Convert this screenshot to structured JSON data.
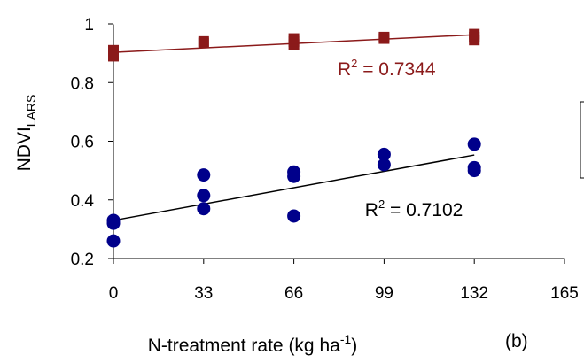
{
  "chart_data": {
    "type": "scatter",
    "panel_label": "(b)",
    "xlabel": {
      "main": "N-treatment rate (kg ha",
      "sup": "-1",
      "end": ")"
    },
    "ylabel": {
      "main": "NDVI",
      "sub": "LARS"
    },
    "xlim": [
      0,
      165
    ],
    "ylim": [
      0.2,
      1.0
    ],
    "xticks": [
      0,
      33,
      66,
      99,
      132,
      165
    ],
    "xtick_labels": [
      "0",
      "33",
      "66",
      "99",
      "132",
      "165"
    ],
    "yticks": [
      0.2,
      0.4,
      0.6,
      0.8,
      1.0
    ],
    "ytick_labels": [
      "0.2",
      "0.4",
      "0.6",
      "0.8",
      "1"
    ],
    "grid": false,
    "legend": "right (clipped)",
    "series": [
      {
        "marker": "square",
        "color": "#8b1a1a",
        "x": [
          0,
          0,
          0,
          33,
          33,
          66,
          66,
          66,
          99,
          99,
          132,
          132,
          132
        ],
        "y": [
          0.89,
          0.9,
          0.91,
          0.935,
          0.94,
          0.93,
          0.94,
          0.95,
          0.95,
          0.955,
          0.945,
          0.955,
          0.965
        ],
        "trend": {
          "x": [
            0,
            132
          ],
          "y": [
            0.903,
            0.963
          ]
        },
        "r2_label": {
          "text": "R",
          "sup": "2",
          "rest": " = 0.7344",
          "anchor_x": 82,
          "anchor_y": 0.825
        }
      },
      {
        "marker": "circle",
        "color": "#00008b",
        "x": [
          0,
          0,
          0,
          33,
          33,
          33,
          66,
          66,
          66,
          99,
          99,
          132,
          132,
          132
        ],
        "y": [
          0.26,
          0.32,
          0.33,
          0.37,
          0.415,
          0.485,
          0.345,
          0.48,
          0.495,
          0.52,
          0.555,
          0.5,
          0.51,
          0.59
        ],
        "trend": {
          "x": [
            0,
            132
          ],
          "y": [
            0.33,
            0.553
          ]
        },
        "r2_label": {
          "text": "R",
          "sup": "2",
          "rest": " = 0.7102",
          "anchor_x": 92,
          "anchor_y": 0.345
        }
      }
    ]
  }
}
